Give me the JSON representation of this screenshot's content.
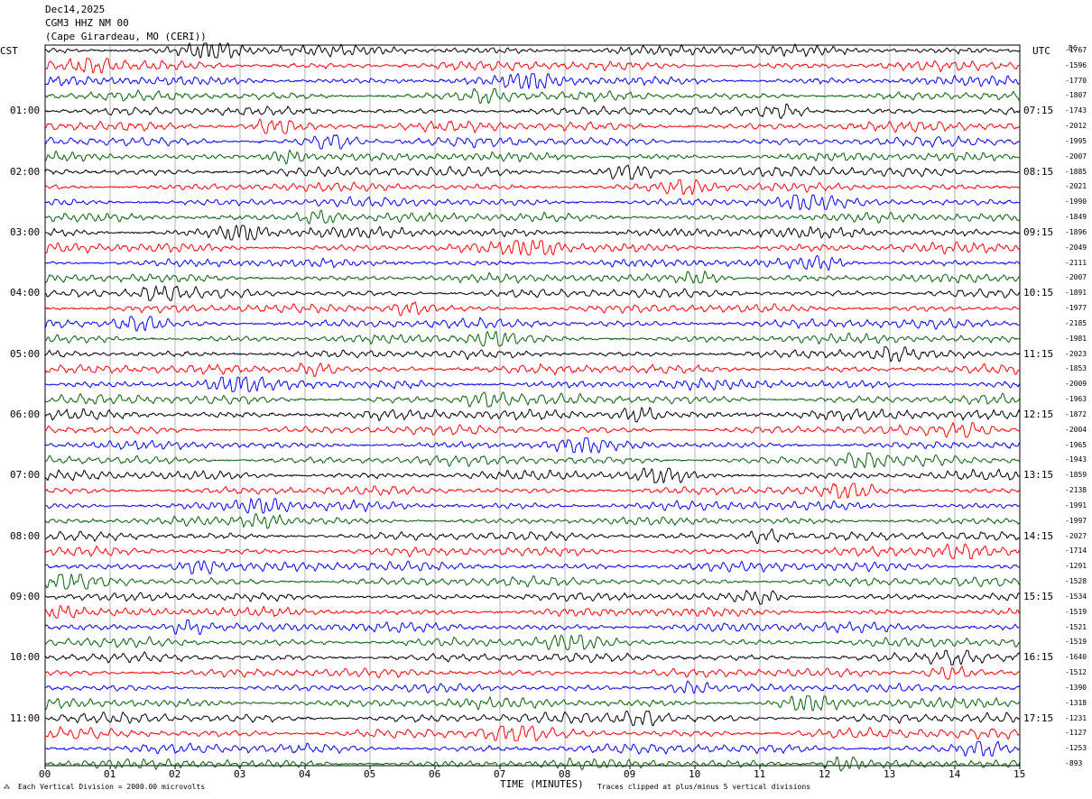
{
  "header": {
    "date": "Dec14,2025",
    "station": "CGM3 HHZ NM 00",
    "location": "(Cape Girardeau, MO (CERI))"
  },
  "left_tz": "CST",
  "right_tz": "UTC",
  "dc_header": "DC",
  "footer": {
    "left": "Each Vertical Division = 2000.00 microvolts",
    "center": "TIME (MINUTES)",
    "right": "Traces clipped at plus/minus 5 vertical divisions"
  },
  "colors": {
    "trace_cycle": [
      "#000000",
      "#ff0000",
      "#0000ff",
      "#006400"
    ],
    "grid": "#808080",
    "frame": "#000000"
  },
  "chart_data": {
    "type": "line",
    "title": "Dec14,2025 CGM3 HHZ NM 00 (Cape Girardeau, MO (CERI))",
    "xlabel": "TIME (MINUTES)",
    "xlim": [
      0,
      15
    ],
    "x_ticks": [
      "00",
      "01",
      "02",
      "03",
      "04",
      "05",
      "06",
      "07",
      "08",
      "09",
      "10",
      "11",
      "12",
      "13",
      "14",
      "15"
    ],
    "left_time_labels": [
      "01:00",
      "02:00",
      "03:00",
      "04:00",
      "05:00",
      "06:00",
      "07:00",
      "08:00",
      "09:00",
      "10:00",
      "11:00"
    ],
    "right_time_labels": [
      "07:15",
      "08:15",
      "09:15",
      "10:15",
      "11:15",
      "12:15",
      "13:15",
      "14:15",
      "15:15",
      "16:15",
      "17:15"
    ],
    "trace_dc_values": [
      "-1767",
      "-1596",
      "-1770",
      "-1807",
      "-1743",
      "-2012",
      "-1995",
      "-2007",
      "-1885",
      "-2021",
      "-1990",
      "-1849",
      "-1896",
      "-2049",
      "-2111",
      "-2007",
      "-1891",
      "-1977",
      "-2185",
      "-1981",
      "-2023",
      "-1853",
      "-2009",
      "-1963",
      "-1872",
      "-2004",
      "-1965",
      "-1943",
      "-1859",
      "-2138",
      "-1991",
      "-1997",
      "-2027",
      "-1714",
      "-1291",
      "-1528",
      "-1534",
      "-1519",
      "-1521",
      "-1519",
      "-1640",
      "-1512",
      "-1390",
      "-1318",
      "-1231",
      "-1127",
      "-1253",
      "-893"
    ],
    "trace_count": 48,
    "trace_minutes": 15,
    "grid": true
  }
}
